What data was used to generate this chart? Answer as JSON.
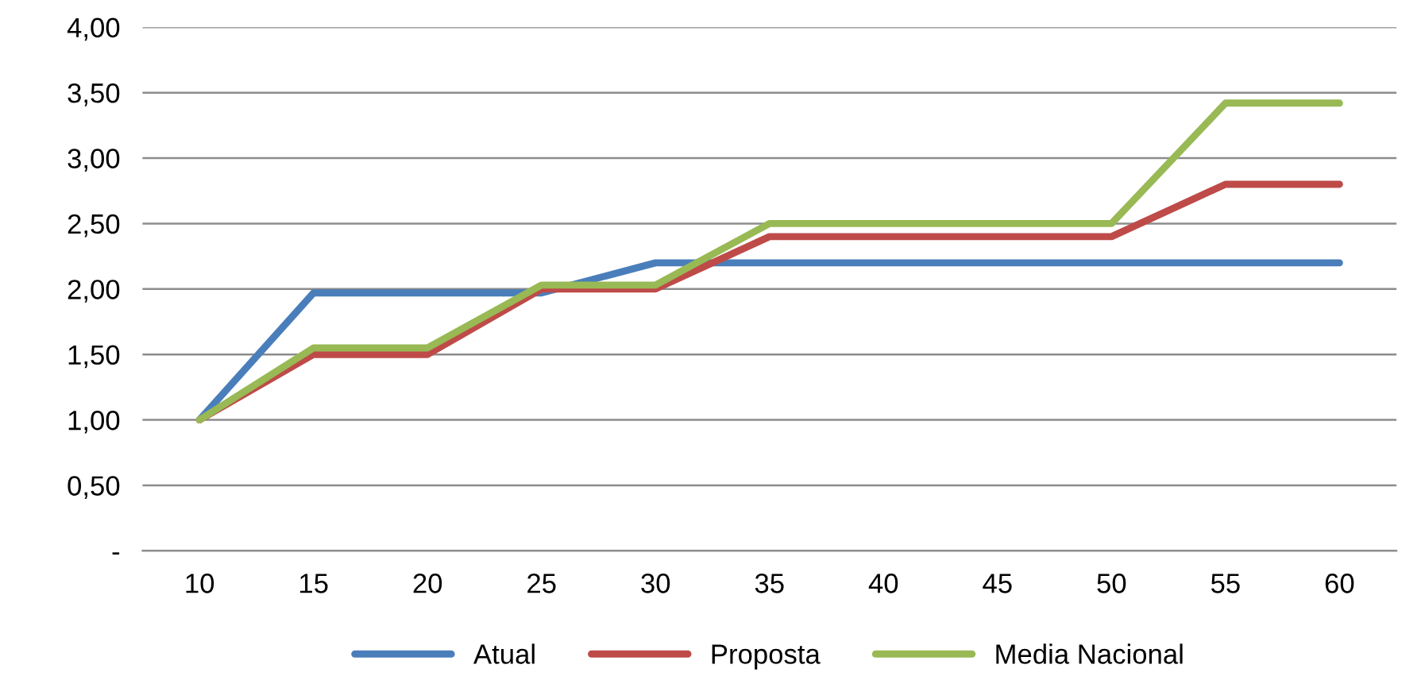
{
  "chart_data": {
    "type": "line",
    "categories": [
      "10",
      "15",
      "20",
      "25",
      "30",
      "35",
      "40",
      "45",
      "50",
      "55",
      "60"
    ],
    "series": [
      {
        "name": "Atual",
        "color": "#4a7ebb",
        "values": [
          1.0,
          1.97,
          1.97,
          1.97,
          2.2,
          2.2,
          2.2,
          2.2,
          2.2,
          2.2,
          2.2
        ]
      },
      {
        "name": "Proposta",
        "color": "#be4b48",
        "values": [
          1.0,
          1.5,
          1.5,
          2.0,
          2.0,
          2.4,
          2.4,
          2.4,
          2.4,
          2.8,
          2.8
        ]
      },
      {
        "name": "Media Nacional",
        "color": "#98b954",
        "values": [
          1.0,
          1.55,
          1.55,
          2.03,
          2.03,
          2.5,
          2.5,
          2.5,
          2.5,
          3.42,
          3.42
        ]
      }
    ],
    "ylim": [
      0,
      4
    ],
    "yticks": [
      {
        "value": 0,
        "label": "-"
      },
      {
        "value": 0.5,
        "label": "0,50"
      },
      {
        "value": 1,
        "label": "1,00"
      },
      {
        "value": 1.5,
        "label": "1,50"
      },
      {
        "value": 2,
        "label": "2,00"
      },
      {
        "value": 2.5,
        "label": "2,50"
      },
      {
        "value": 3,
        "label": "3,00"
      },
      {
        "value": 3.5,
        "label": "3,50"
      },
      {
        "value": 4,
        "label": "4,00"
      }
    ],
    "grid": "y",
    "legend": "bottom",
    "marker": "none",
    "line_style": "solid"
  }
}
